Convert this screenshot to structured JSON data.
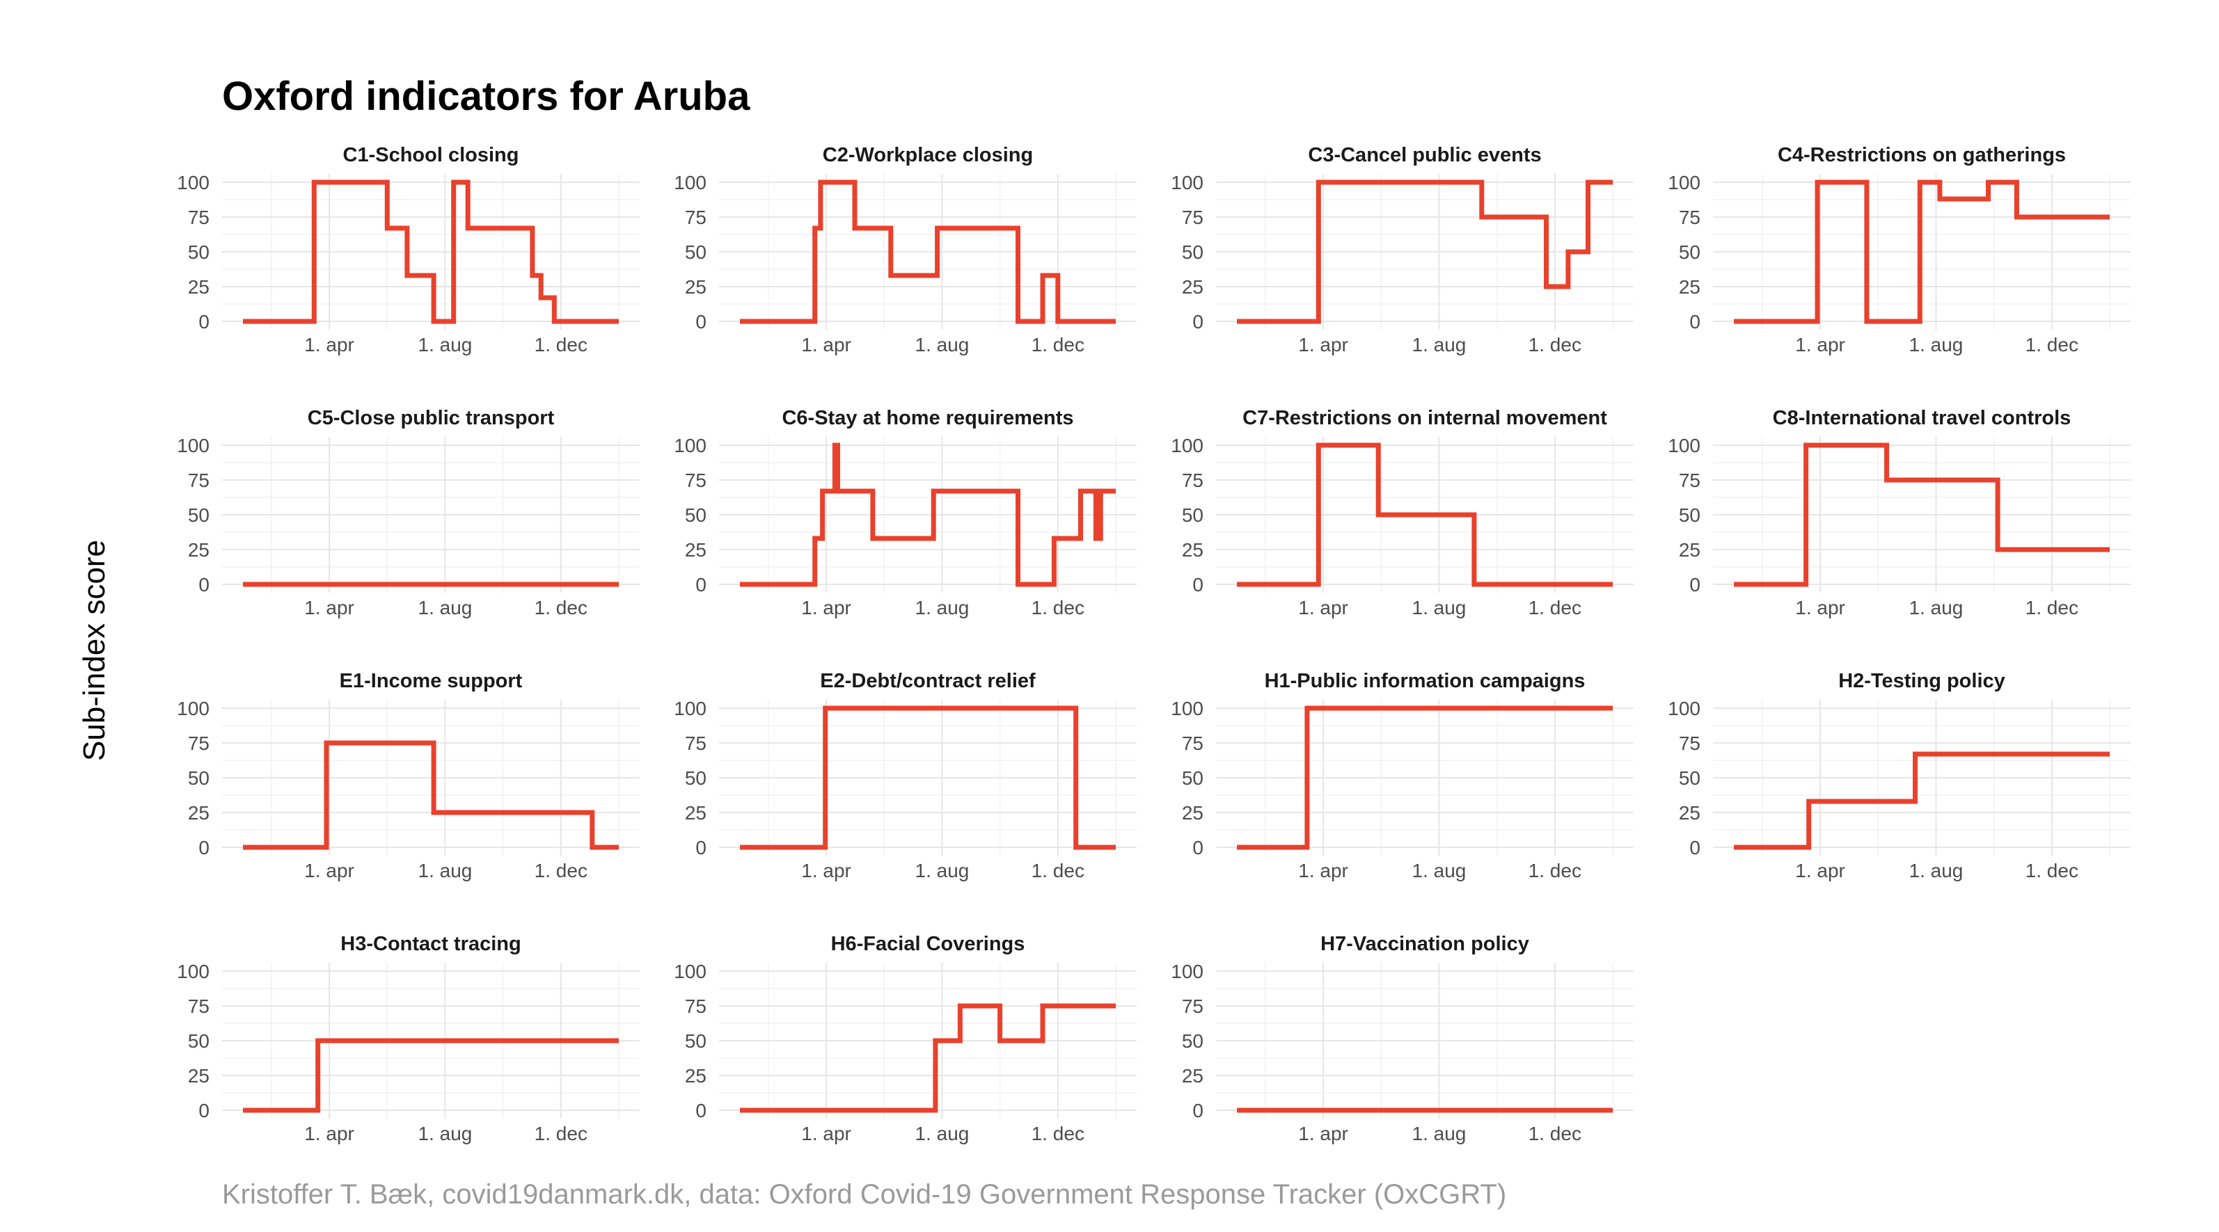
{
  "title": "Oxford indicators for Aruba",
  "ylabel": "Sub-index score",
  "caption": "Kristoffer T. Bæk, covid19danmark.dk, data: Oxford Covid-19 Government Response Tracker (OxCGRT)",
  "colors": {
    "series": "#e8412c",
    "grid": "#e6e6e6"
  },
  "chart_data": {
    "type": "line",
    "step": true,
    "x_unit": "date",
    "x_range": [
      "2020-01-01",
      "2021-01-31"
    ],
    "ylim": [
      0,
      100
    ],
    "yticks": [
      0,
      25,
      50,
      75,
      100
    ],
    "xticks": [
      {
        "date": "2020-04-01",
        "label": "1. apr"
      },
      {
        "date": "2020-08-01",
        "label": "1. aug"
      },
      {
        "date": "2020-12-01",
        "label": "1. dec"
      }
    ],
    "grid": true,
    "panels": [
      {
        "title": "C1-School closing",
        "points": [
          [
            "2020-01-01",
            0
          ],
          [
            "2020-03-16",
            100
          ],
          [
            "2020-06-01",
            67
          ],
          [
            "2020-06-22",
            33
          ],
          [
            "2020-07-20",
            0
          ],
          [
            "2020-08-10",
            100
          ],
          [
            "2020-08-25",
            67
          ],
          [
            "2020-11-01",
            33
          ],
          [
            "2020-11-10",
            17
          ],
          [
            "2020-11-24",
            0
          ],
          [
            "2021-01-31",
            0
          ]
        ]
      },
      {
        "title": "C2-Workplace closing",
        "points": [
          [
            "2020-01-01",
            0
          ],
          [
            "2020-03-20",
            67
          ],
          [
            "2020-03-26",
            100
          ],
          [
            "2020-05-01",
            67
          ],
          [
            "2020-06-08",
            33
          ],
          [
            "2020-07-27",
            67
          ],
          [
            "2020-10-20",
            0
          ],
          [
            "2020-11-15",
            33
          ],
          [
            "2020-12-01",
            0
          ],
          [
            "2021-01-31",
            0
          ]
        ]
      },
      {
        "title": "C3-Cancel public events",
        "points": [
          [
            "2020-01-01",
            0
          ],
          [
            "2020-03-27",
            100
          ],
          [
            "2020-09-15",
            75
          ],
          [
            "2020-11-22",
            25
          ],
          [
            "2020-12-15",
            50
          ],
          [
            "2021-01-05",
            100
          ],
          [
            "2021-01-31",
            100
          ]
        ]
      },
      {
        "title": "C4-Restrictions on gatherings",
        "points": [
          [
            "2020-01-01",
            0
          ],
          [
            "2020-03-29",
            100
          ],
          [
            "2020-05-20",
            0
          ],
          [
            "2020-07-15",
            100
          ],
          [
            "2020-08-05",
            88
          ],
          [
            "2020-09-25",
            100
          ],
          [
            "2020-10-25",
            75
          ],
          [
            "2021-01-31",
            75
          ]
        ]
      },
      {
        "title": "C5-Close public transport",
        "points": [
          [
            "2020-01-01",
            0
          ],
          [
            "2021-01-31",
            0
          ]
        ]
      },
      {
        "title": "C6-Stay at home requirements",
        "points": [
          [
            "2020-01-01",
            0
          ],
          [
            "2020-03-20",
            33
          ],
          [
            "2020-03-28",
            67
          ],
          [
            "2020-04-10",
            100
          ],
          [
            "2020-04-13",
            67
          ],
          [
            "2020-05-20",
            33
          ],
          [
            "2020-07-23",
            67
          ],
          [
            "2020-10-20",
            0
          ],
          [
            "2020-11-27",
            33
          ],
          [
            "2020-12-25",
            67
          ],
          [
            "2021-01-10",
            33
          ],
          [
            "2021-01-15",
            67
          ],
          [
            "2021-01-31",
            67
          ]
        ]
      },
      {
        "title": "C7-Restrictions on internal movement",
        "points": [
          [
            "2020-01-01",
            0
          ],
          [
            "2020-03-27",
            100
          ],
          [
            "2020-05-29",
            50
          ],
          [
            "2020-09-07",
            0
          ],
          [
            "2021-01-31",
            0
          ]
        ]
      },
      {
        "title": "C8-International travel controls",
        "points": [
          [
            "2020-01-01",
            0
          ],
          [
            "2020-03-17",
            100
          ],
          [
            "2020-06-10",
            75
          ],
          [
            "2020-10-05",
            25
          ],
          [
            "2021-01-31",
            25
          ]
        ]
      },
      {
        "title": "E1-Income support",
        "points": [
          [
            "2020-01-01",
            0
          ],
          [
            "2020-03-29",
            75
          ],
          [
            "2020-07-20",
            25
          ],
          [
            "2021-01-03",
            0
          ],
          [
            "2021-01-31",
            0
          ]
        ]
      },
      {
        "title": "E2-Debt/contract relief",
        "points": [
          [
            "2020-01-01",
            0
          ],
          [
            "2020-03-31",
            100
          ],
          [
            "2020-12-20",
            0
          ],
          [
            "2021-01-31",
            0
          ]
        ]
      },
      {
        "title": "H1-Public information campaigns",
        "points": [
          [
            "2020-01-01",
            0
          ],
          [
            "2020-03-15",
            100
          ],
          [
            "2021-01-31",
            100
          ]
        ]
      },
      {
        "title": "H2-Testing policy",
        "points": [
          [
            "2020-01-01",
            0
          ],
          [
            "2020-03-20",
            33
          ],
          [
            "2020-07-10",
            67
          ],
          [
            "2021-01-31",
            67
          ]
        ]
      },
      {
        "title": "H3-Contact tracing",
        "points": [
          [
            "2020-01-01",
            0
          ],
          [
            "2020-03-20",
            50
          ],
          [
            "2021-01-31",
            50
          ]
        ]
      },
      {
        "title": "H6-Facial Coverings",
        "points": [
          [
            "2020-01-01",
            0
          ],
          [
            "2020-07-25",
            50
          ],
          [
            "2020-08-20",
            75
          ],
          [
            "2020-10-01",
            50
          ],
          [
            "2020-11-15",
            75
          ],
          [
            "2021-01-31",
            75
          ]
        ]
      },
      {
        "title": "H7-Vaccination policy",
        "points": [
          [
            "2020-01-01",
            0
          ],
          [
            "2021-01-31",
            0
          ]
        ]
      }
    ]
  }
}
